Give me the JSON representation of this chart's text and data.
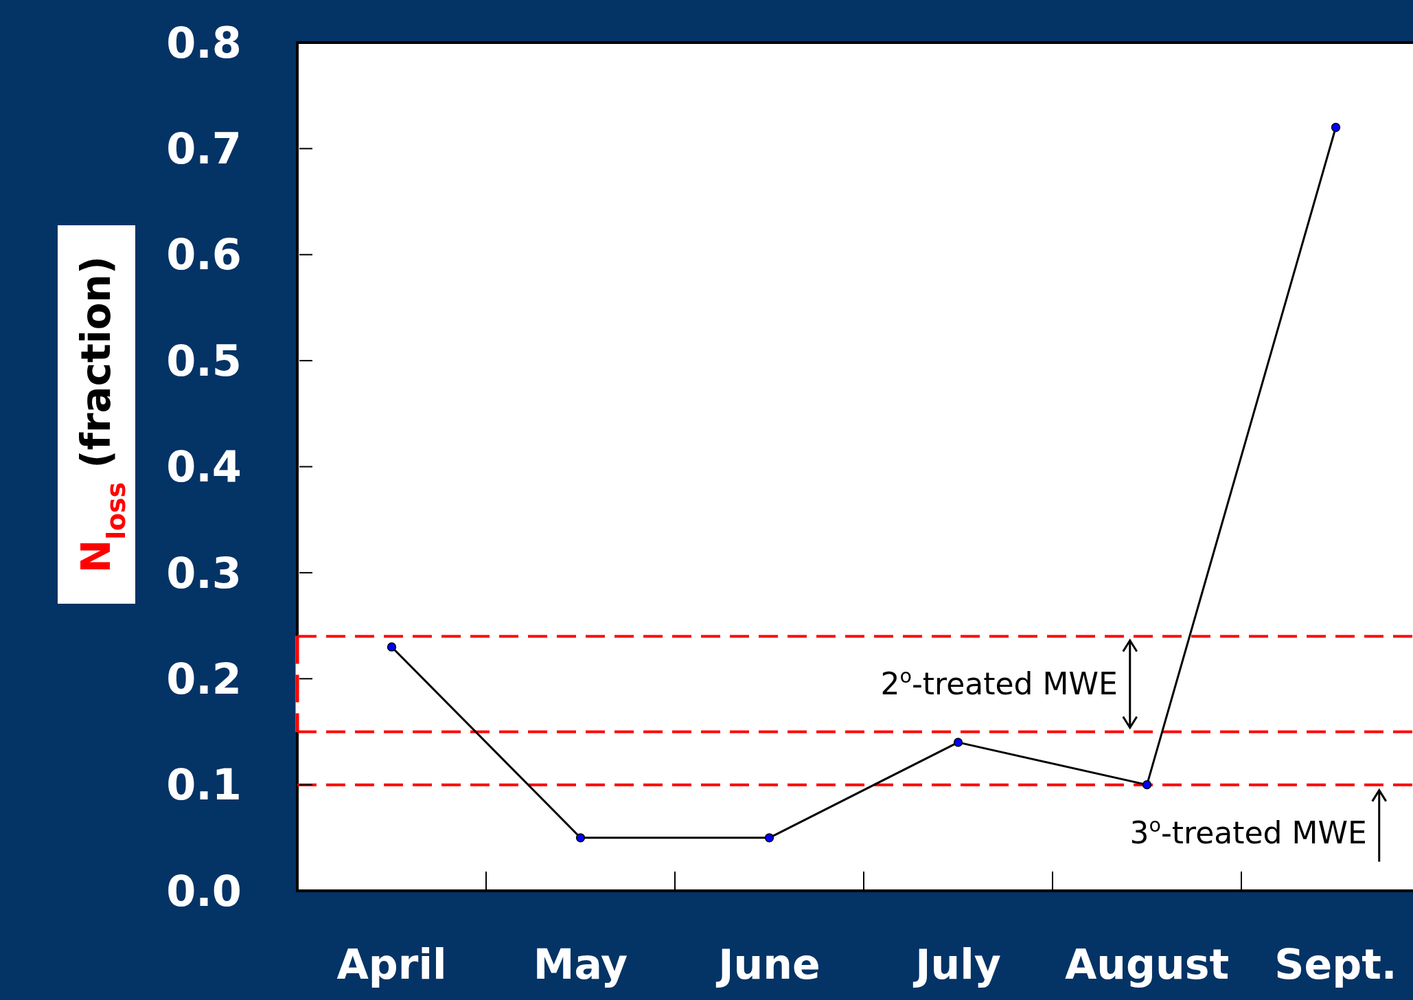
{
  "chart_data": {
    "type": "line",
    "ylabel": "N$_{loss}$ (fraction)",
    "categories": [
      "April",
      "May",
      "June",
      "July",
      "August",
      "Sept."
    ],
    "series": [
      {
        "color": "#000000",
        "values": [
          0.23,
          0.05,
          0.05,
          0.14,
          0.1,
          0.72
        ]
      }
    ],
    "marker": "circle",
    "ylim": [
      0,
      0.8
    ],
    "yticks": [
      {
        "value": 0,
        "label": "0.0"
      },
      0.1,
      0.2,
      0.3,
      0.4,
      0.5,
      0.6,
      0.7,
      0.8
    ],
    "annotations": [
      "2$^{o}$-treated MWE"
    ],
    "ref_lines": [
      {
        "axis": "y",
        "value": 0.24,
        "color": "#ff0000",
        "line_style": "dashed"
      },
      {
        "axis": "y",
        "value": 0.15,
        "color": "#ff0000",
        "line_style": "dashed"
      },
      {
        "axis": "y",
        "value": 0.1,
        "label": "3$^{o}$-treated MWE",
        "color": "#ff0000",
        "line_style": "dashed"
      }
    ]
  }
}
